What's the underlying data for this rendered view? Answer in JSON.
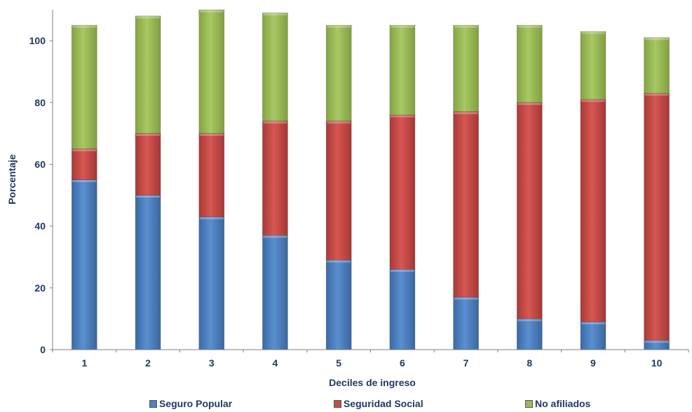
{
  "chart_data": {
    "type": "bar",
    "stacked": true,
    "categories": [
      "1",
      "2",
      "3",
      "4",
      "5",
      "6",
      "7",
      "8",
      "9",
      "10"
    ],
    "series": [
      {
        "name": "Seguro Popular",
        "color": "#4f81bd",
        "values": [
          55,
          50,
          43,
          37,
          29,
          26,
          17,
          10,
          9,
          3
        ]
      },
      {
        "name": "Seguridad Social",
        "color": "#c0504d",
        "values": [
          10,
          20,
          27,
          37,
          45,
          50,
          60,
          70,
          72,
          80
        ]
      },
      {
        "name": "No afiliados",
        "color": "#9bbb59",
        "values": [
          40,
          38,
          40,
          35,
          31,
          29,
          28,
          25,
          22,
          18
        ]
      }
    ],
    "xlabel": "Deciles de ingreso",
    "ylabel": "Porcentaje",
    "ylim": [
      0,
      110
    ],
    "yticks": [
      "0",
      "20",
      "40",
      "60",
      "80",
      "100"
    ],
    "grid": false,
    "legend_position": "bottom"
  }
}
